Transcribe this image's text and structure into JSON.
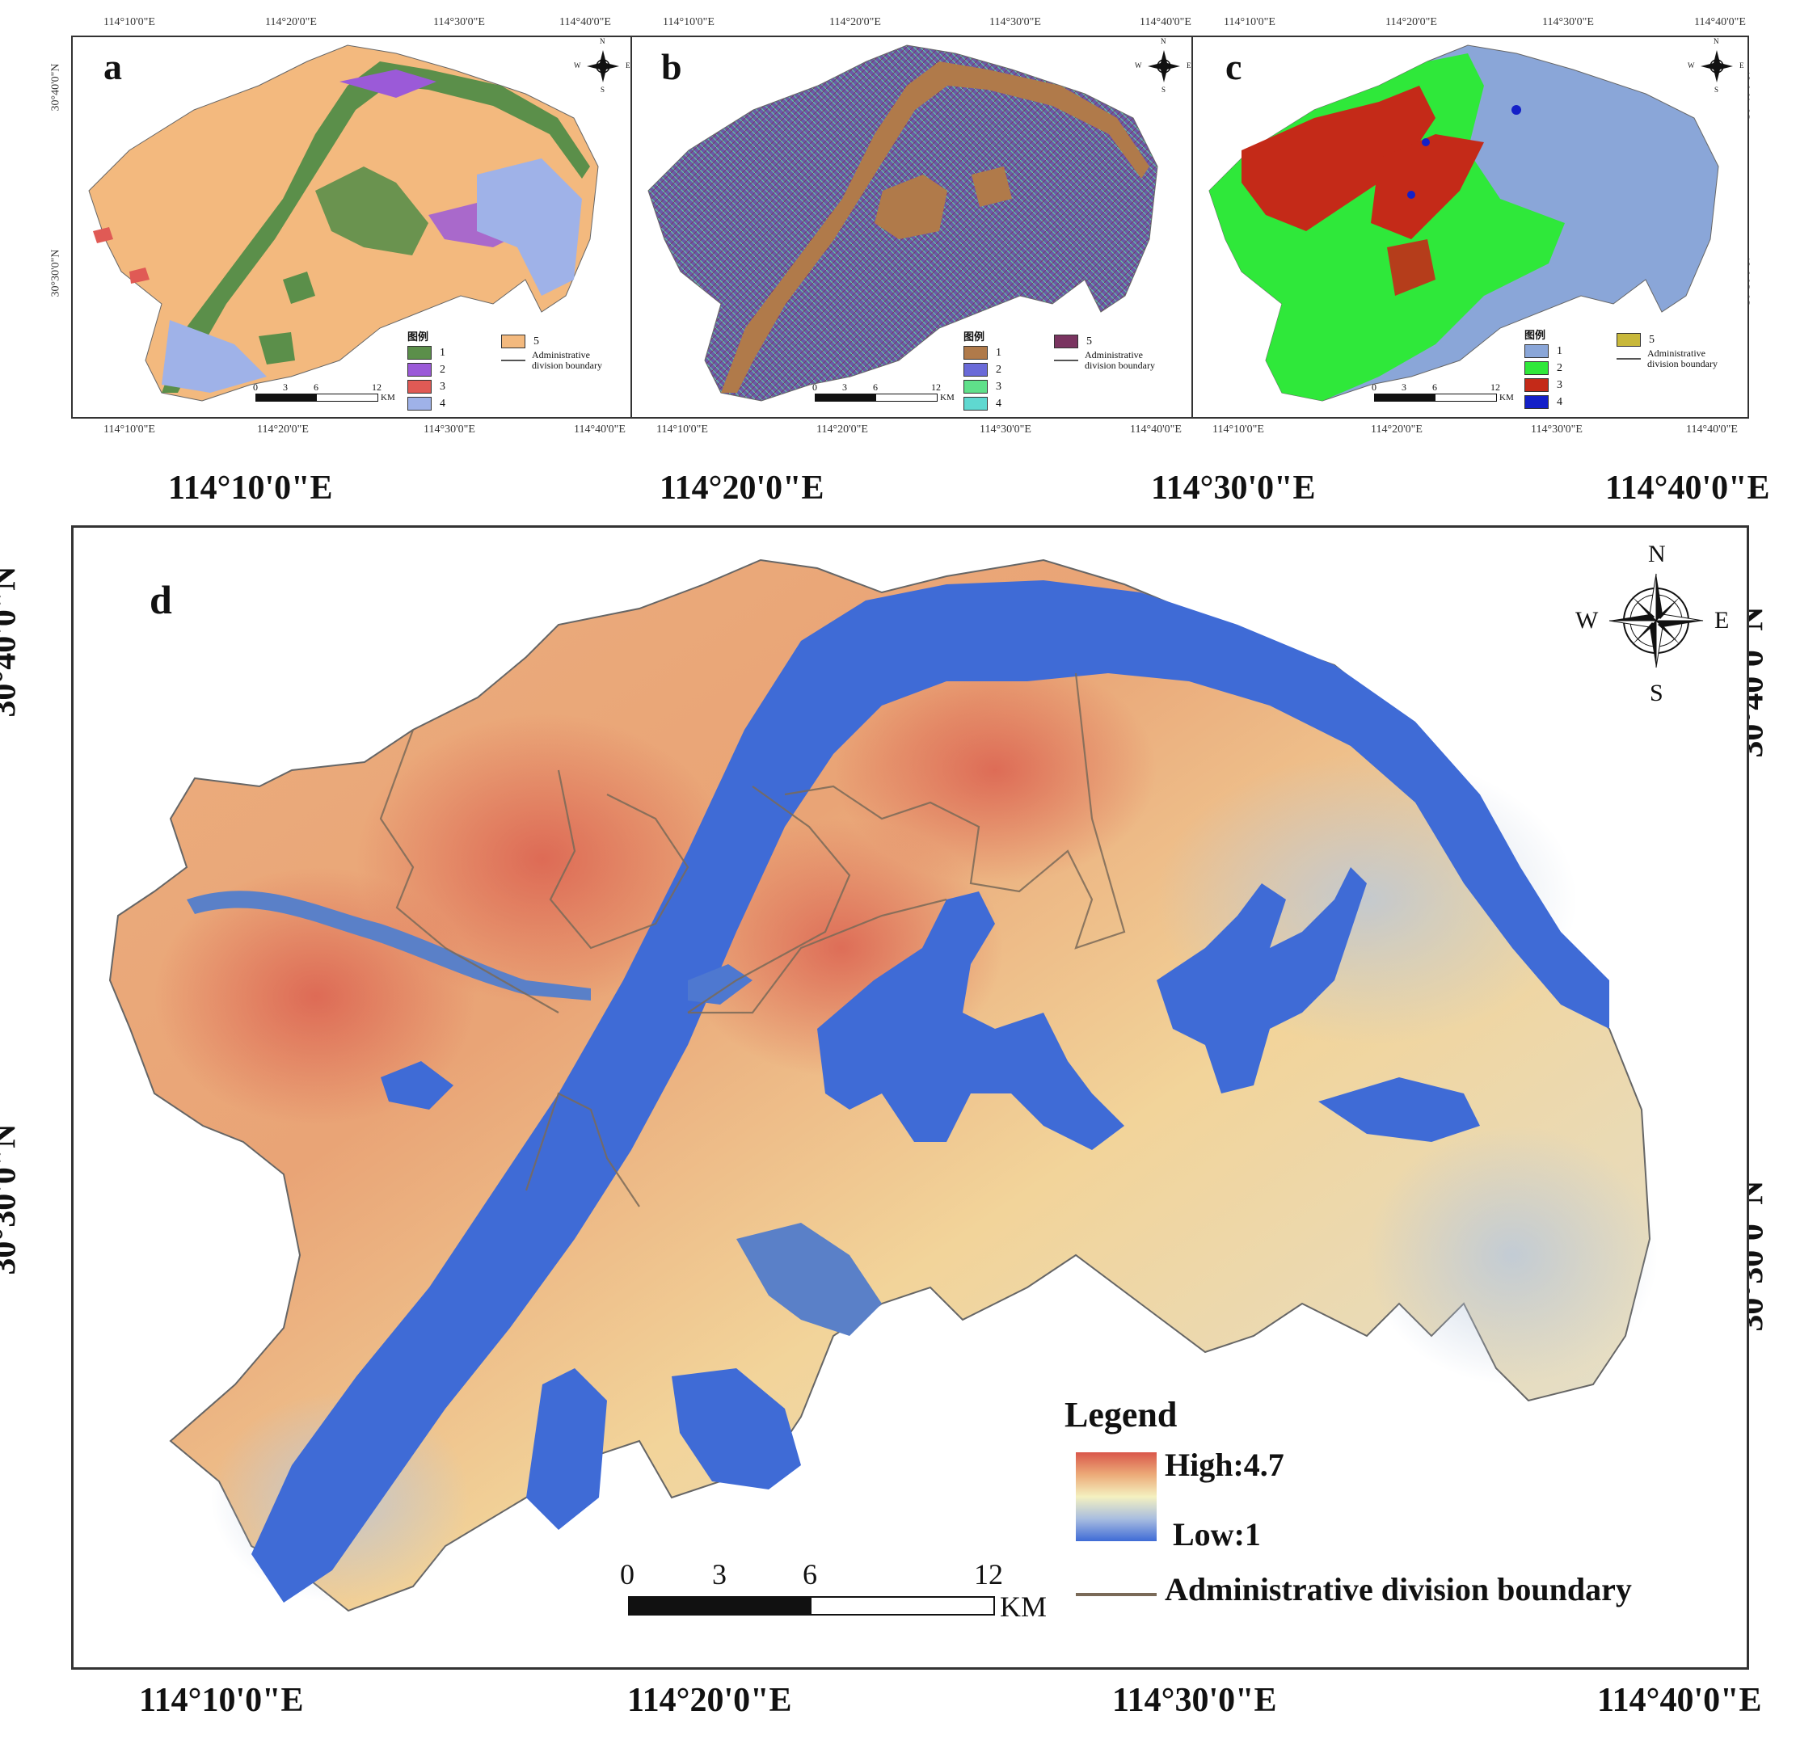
{
  "panels": {
    "a": {
      "letter": "a",
      "legend_title": "图例",
      "legend_items": [
        {
          "label": "1",
          "color": "#5b8f4a"
        },
        {
          "label": "2",
          "color": "#9b5ad8"
        },
        {
          "label": "3",
          "color": "#e05a55"
        },
        {
          "label": "4",
          "color": "#9fb2e8"
        },
        {
          "label": "5",
          "color": "#f3b97e"
        }
      ],
      "boundary_line1": "Administrative",
      "boundary_line2": "division boundary",
      "scale": {
        "labels": [
          "0",
          "3",
          "6",
          "12"
        ],
        "unit": "KM"
      },
      "top_ticks": [
        "114°10'0\"E",
        "114°20'0\"E",
        "114°30'0\"E",
        "114°40'0\"E"
      ],
      "bottom_ticks": [
        "114°10'0\"E",
        "114°20'0\"E",
        "114°30'0\"E",
        "114°40'0\"E"
      ],
      "left_ticks": [
        "30°40'0\"N",
        "30°30'0\"N"
      ],
      "compass": {
        "n": "N",
        "e": "E",
        "s": "S",
        "w": "W"
      }
    },
    "b": {
      "letter": "b",
      "legend_title": "图例",
      "legend_items": [
        {
          "label": "1",
          "color": "#b07a4a"
        },
        {
          "label": "2",
          "color": "#6a6ad8"
        },
        {
          "label": "3",
          "color": "#5fe08a"
        },
        {
          "label": "4",
          "color": "#5fd8d0"
        },
        {
          "label": "5",
          "color": "#7a3460"
        }
      ],
      "boundary_line1": "Administrative",
      "boundary_line2": "division boundary",
      "scale": {
        "labels": [
          "0",
          "3",
          "6",
          "12"
        ],
        "unit": "KM"
      },
      "top_ticks": [
        "114°10'0\"E",
        "114°20'0\"E",
        "114°30'0\"E",
        "114°40'0\"E"
      ],
      "bottom_ticks": [
        "114°10'0\"E",
        "114°20'0\"E",
        "114°30'0\"E",
        "114°40'0\"E"
      ],
      "compass": {
        "n": "N",
        "e": "E",
        "s": "S",
        "w": "W"
      }
    },
    "c": {
      "letter": "c",
      "legend_title": "图例",
      "legend_items": [
        {
          "label": "1",
          "color": "#8aa6d8"
        },
        {
          "label": "2",
          "color": "#2fe83a"
        },
        {
          "label": "3",
          "color": "#c42a18"
        },
        {
          "label": "4",
          "color": "#1420c8"
        },
        {
          "label": "5",
          "color": "#c8b83a"
        }
      ],
      "boundary_line1": "Administrative",
      "boundary_line2": "division boundary",
      "scale": {
        "labels": [
          "0",
          "3",
          "6",
          "12"
        ],
        "unit": "KM"
      },
      "top_ticks": [
        "114°10'0\"E",
        "114°20'0\"E",
        "114°30'0\"E",
        "114°40'0\"E"
      ],
      "bottom_ticks": [
        "114°10'0\"E",
        "114°20'0\"E",
        "114°30'0\"E",
        "114°40'0\"E"
      ],
      "right_ticks": [
        "30°40'0\"N",
        "30°30'0\"N"
      ],
      "compass": {
        "n": "N",
        "e": "E",
        "s": "S",
        "w": "W"
      }
    }
  },
  "main": {
    "letter": "d",
    "top_ticks": [
      "114°10'0\"E",
      "114°20'0\"E",
      "114°30'0\"E",
      "114°40'0\"E"
    ],
    "bottom_ticks": [
      "114°10'0\"E",
      "114°20'0\"E",
      "114°30'0\"E",
      "114°40'0\"E"
    ],
    "left_ticks": [
      "30°40'0\"N",
      "30°30'0\"N"
    ],
    "right_ticks": [
      "30°40'0\"N",
      "30°30'0\"N"
    ],
    "compass": {
      "n": "N",
      "e": "E",
      "s": "S",
      "w": "W"
    },
    "legend": {
      "title": "Legend",
      "high": "High:4.7",
      "low": "Low:1",
      "boundary": "Administrative division boundary",
      "ramp_colors": [
        "#d9574a",
        "#ecaa78",
        "#f4f1c0",
        "#a8bde0",
        "#3f6bd6"
      ]
    },
    "scale": {
      "labels": [
        "0",
        "3",
        "6",
        "12"
      ],
      "unit": "KM"
    },
    "colors": {
      "high": "#d9574a",
      "mid": "#f2d49a",
      "low": "#3f6bd6",
      "boundary": "#7a6a58"
    }
  }
}
